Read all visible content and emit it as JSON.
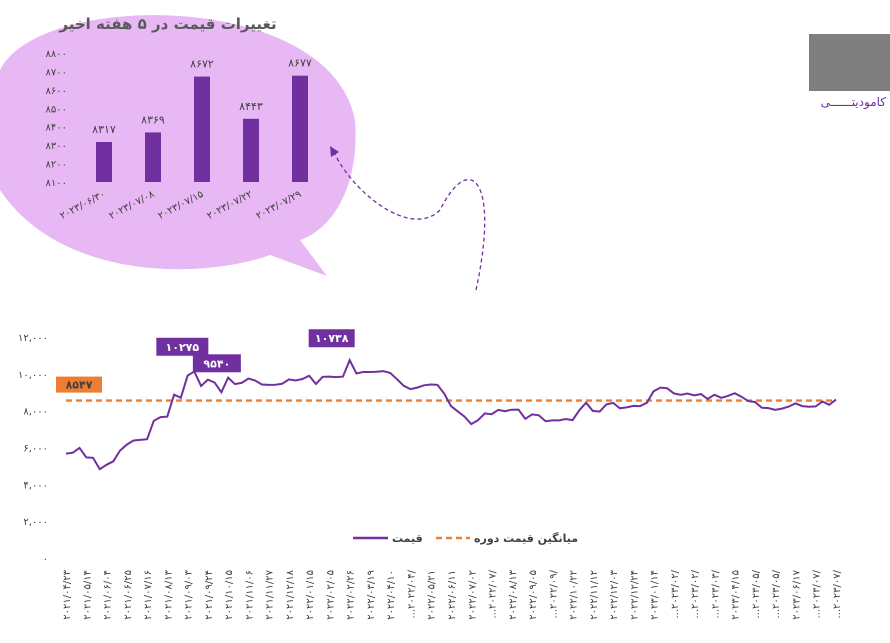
{
  "side_label": "کامودیتــــــی",
  "colors": {
    "purple": "#7030a0",
    "orange": "#ed7d31",
    "bubble": "#e8b8f5",
    "avg_label_bg": "#ed7d31",
    "grey": "#7f7f7f"
  },
  "chart_data": [
    {
      "type": "bar",
      "title": "تغییرات قیمت در ۵ هفته اخیر",
      "categories": [
        "۲۰۲۳/۰۶/۳۰",
        "۲۰۲۳/۰۷/۰۸",
        "۲۰۲۳/۰۷/۱۵",
        "۲۰۲۳/۰۷/۲۲",
        "۲۰۲۳/۰۷/۲۹"
      ],
      "values": [
        8317,
        8369,
        8672,
        8443,
        8677
      ],
      "value_labels": [
        "۸۳۱۷",
        "۸۳۶۹",
        "۸۶۷۲",
        "۸۴۴۳",
        "۸۶۷۷"
      ],
      "ylim": [
        8100,
        8800
      ],
      "yticks": [
        8100,
        8200,
        8300,
        8400,
        8500,
        8600,
        8700,
        8800
      ],
      "ytick_labels": [
        "۸۱۰۰",
        "۸۲۰۰",
        "۸۳۰۰",
        "۸۴۰۰",
        "۸۵۰۰",
        "۸۶۰۰",
        "۸۷۰۰",
        "۸۸۰۰"
      ],
      "grid": false
    },
    {
      "type": "line",
      "ylim": [
        0,
        12000
      ],
      "yticks": [
        0,
        2000,
        4000,
        6000,
        8000,
        10000,
        12000
      ],
      "ytick_labels": [
        "۰",
        "۲,۰۰۰",
        "۴,۰۰۰",
        "۶,۰۰۰",
        "۸,۰۰۰",
        "۱۰,۰۰۰",
        "۱۲,۰۰۰"
      ],
      "xtick_labels": [
        "۲۰۲۱/۰۴/۲۳",
        "۲۰۲۱/۰۵/۱۴",
        "۲۰۲۱/۰۶/۰۴",
        "۲۰۲۱/۰۶/۲۵",
        "۲۰۲۱/۰۷/۱۶",
        "۲۰۲۱/۰۸/۱۳",
        "۲۰۲۱/۰۹/۰۳",
        "۲۰۲۱/۰۹/۲۴",
        "۲۰۲۱/۱۰/۱۵",
        "۲۰۲۱/۱۱/۰۶",
        "۲۰۲۱/۱۱/۲۷",
        "۲۰۲۱/۱۲/۱۸",
        "۲۰۲۲/۰۱/۱۵",
        "۲۰۲۲/۰۲/۰۵",
        "۲۰۲۲/۰۲/۲۶",
        "۲۰۲۲/۰۳/۱۹",
        "۲۰۲۲/۰۴/۱۰",
        "...۲۰۲۲/۰۴/",
        "۲۰۲۲/۰۵/۲۱",
        "۲۰۲۲/۰۶/۱۱",
        "۲۰۲۲/۰۷/۰۲",
        "...۲۰۲۲/۰۷/",
        "۲۰۲۲/۰۸/۱۳",
        "۲۰۲۲/۰۹/۰۵",
        "...۲۰۲۲/۰۹/",
        "۲۰۲۲/۱۰/۲۲",
        "۲۰۲۲/۱۱/۱۲",
        "۲۰۲۲/۱۲/۰۳",
        "۲۰۲۲/۱۲/۲۴",
        "۲۰۲۳/۰۱/۱۴",
        "...۲۰۲۳/۰۲/",
        "...۲۰۲۳/۰۲/",
        "...۲۰۲۳/۰۳/",
        "۲۰۲۳/۰۴/۱۵",
        "...۲۰۲۳/۰۵/",
        "...۲۰۲۳/۰۵/",
        "۲۰۲۳/۰۶/۱۷",
        "...۲۰۲۳/۰۷/",
        "...۲۰۲۳/۰۷/"
      ],
      "series": [
        {
          "name": "قیمت",
          "values": [
            5670,
            5720,
            5980,
            5460,
            5440,
            4820,
            5060,
            5250,
            5830,
            6160,
            6380,
            6410,
            6450,
            7450,
            7650,
            7680,
            8870,
            8700,
            9900,
            10130,
            9340,
            9680,
            9530,
            9000,
            9790,
            9440,
            9510,
            9740,
            9640,
            9420,
            9400,
            9410,
            9460,
            9700,
            9640,
            9720,
            9900,
            9450,
            9840,
            9850,
            9820,
            9850,
            10738,
            10020,
            10100,
            10100,
            10110,
            10150,
            10050,
            9710,
            9350,
            9170,
            9250,
            9380,
            9420,
            9400,
            8920,
            8250,
            7960,
            7680,
            7270,
            7480,
            7850,
            7810,
            8040,
            7970,
            8050,
            8060,
            7560,
            7800,
            7750,
            7430,
            7470,
            7470,
            7550,
            7490,
            8020,
            8430,
            7990,
            7950,
            8340,
            8420,
            8130,
            8180,
            8260,
            8250,
            8430,
            9050,
            9250,
            9220,
            8940,
            8860,
            8930,
            8830,
            8900,
            8640,
            8860,
            8700,
            8800,
            8950,
            8760,
            8520,
            8470,
            8160,
            8140,
            8040,
            8110,
            8220,
            8400,
            8250,
            8210,
            8230,
            8500,
            8320,
            8600
          ]
        },
        {
          "name": "میانگین قیمت دوره",
          "values": [
            8547
          ]
        }
      ],
      "annotations": [
        {
          "text": "۱۰۲۷۵",
          "value": 10275
        },
        {
          "text": "۹۵۴۰",
          "value": 9540
        },
        {
          "text": "۱۰۷۳۸",
          "value": 10738
        },
        {
          "text": "۸۵۴۷",
          "value": 8547
        }
      ],
      "legend_position": "bottom-center",
      "grid": false
    }
  ]
}
